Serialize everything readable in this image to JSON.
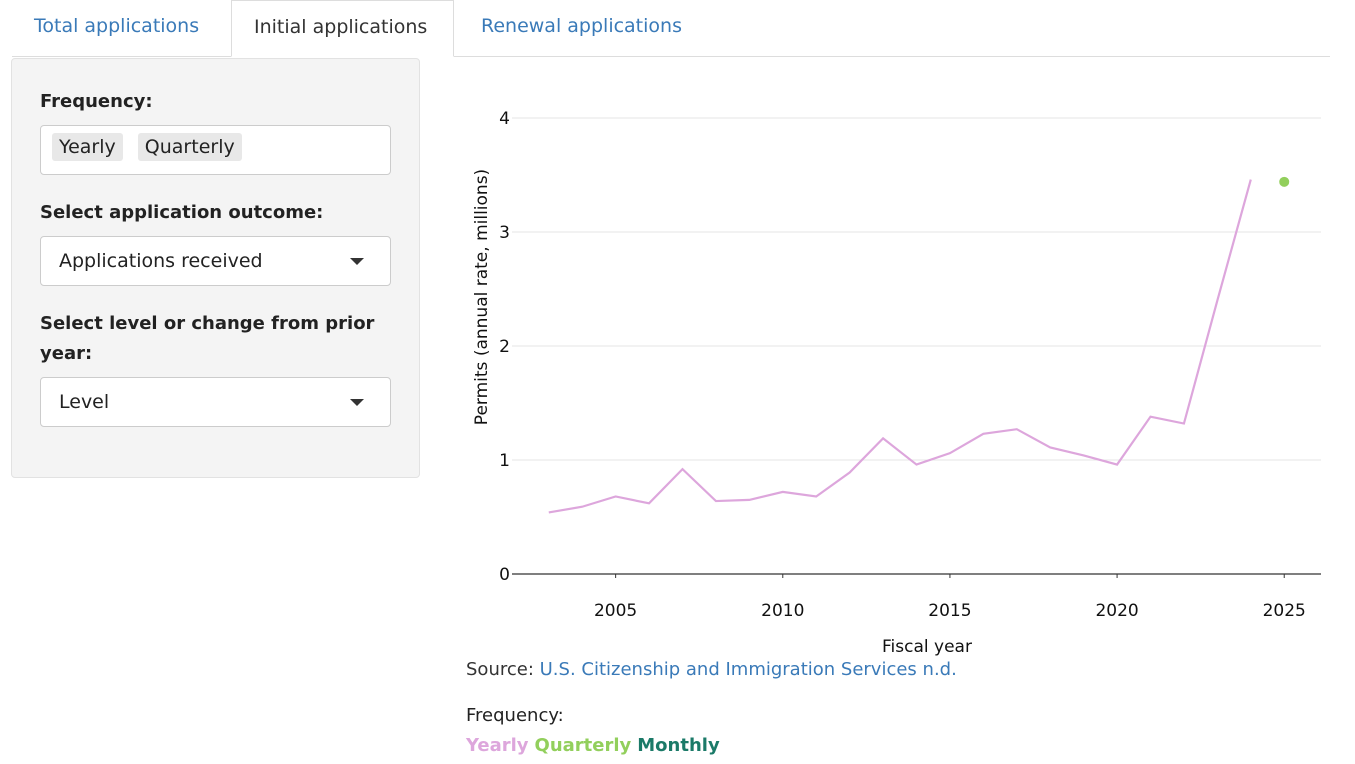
{
  "tabs": [
    "Total applications",
    "Initial applications",
    "Renewal applications"
  ],
  "sidebar": {
    "frequency_label": "Frequency:",
    "frequency_tags": [
      "Yearly",
      "Quarterly"
    ],
    "outcome_label": "Select application outcome:",
    "outcome_value": "Applications received",
    "level_label": "Select level or change from prior year:",
    "level_value": "Level"
  },
  "chart_data": {
    "type": "line",
    "x_label": "Fiscal year",
    "y_label": "Permits (annual rate, millions)",
    "x": [
      2003,
      2004,
      2005,
      2006,
      2007,
      2008,
      2009,
      2010,
      2011,
      2012,
      2013,
      2014,
      2015,
      2016,
      2017,
      2018,
      2019,
      2020,
      2021,
      2022,
      2023,
      2024,
      2025
    ],
    "series": [
      {
        "name": "Yearly",
        "color": "#dda6dc",
        "values": [
          0.54,
          0.59,
          0.68,
          0.62,
          0.92,
          0.64,
          0.65,
          0.72,
          0.68,
          0.89,
          1.19,
          0.96,
          1.06,
          1.23,
          1.27,
          1.11,
          1.04,
          0.96,
          1.38,
          1.32,
          2.4,
          3.46,
          null
        ]
      },
      {
        "name": "Quarterly",
        "color": "#92cf5c",
        "values": [
          null,
          null,
          null,
          null,
          null,
          null,
          null,
          null,
          null,
          null,
          null,
          null,
          null,
          null,
          null,
          null,
          null,
          null,
          null,
          null,
          null,
          null,
          3.44
        ]
      },
      {
        "name": "Monthly",
        "color": "#1b7a68",
        "values": [
          null,
          null,
          null,
          null,
          null,
          null,
          null,
          null,
          null,
          null,
          null,
          null,
          null,
          null,
          null,
          null,
          null,
          null,
          null,
          null,
          null,
          null,
          null
        ]
      }
    ],
    "xlim": [
      2001.9,
      2026.1
    ],
    "xticks": [
      2005,
      2010,
      2015,
      2020,
      2025
    ],
    "ylim": [
      0,
      4.2
    ],
    "yticks": [
      0,
      1,
      2,
      3,
      4
    ],
    "grid": true
  },
  "source": {
    "label": "Source:",
    "link": "U.S. Citizenship and Immigration Services n.d."
  },
  "legend_label": "Frequency:"
}
